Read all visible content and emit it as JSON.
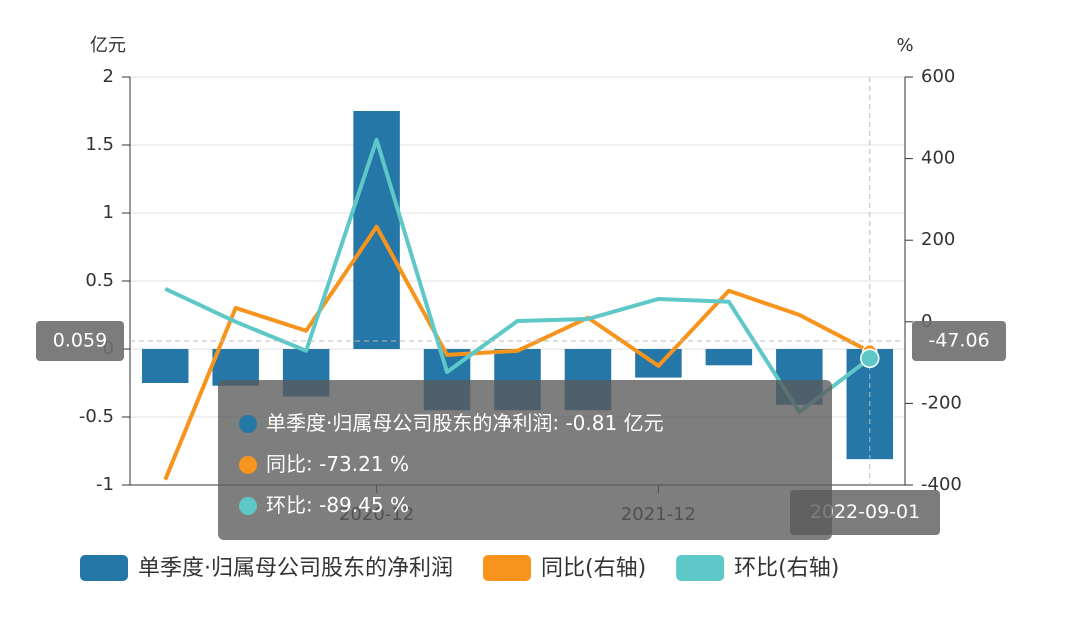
{
  "chart_data": {
    "type": "bar_line",
    "categories": [
      null,
      null,
      null,
      "2020-12",
      null,
      null,
      null,
      "2021-12",
      null,
      null,
      "2022-09-01"
    ],
    "ylabel": "亿元",
    "y2label": "%",
    "ylim": [
      -1,
      2
    ],
    "yticks": [
      -1,
      -0.5,
      0,
      0.5,
      1,
      1.5,
      2
    ],
    "y2lim": [
      -400,
      600
    ],
    "y2ticks": [
      -400,
      -200,
      0,
      200,
      400,
      600
    ],
    "grid": true,
    "legend": "bottom",
    "series": [
      {
        "name": "单季度·归属母公司股东的净利润",
        "type": "bar",
        "color": "#2577a8",
        "values": [
          -0.25,
          -0.27,
          -0.35,
          1.75,
          -0.45,
          -0.45,
          -0.45,
          -0.21,
          -0.12,
          -0.41,
          -0.81
        ]
      },
      {
        "name": "同比(右轴)",
        "type": "line",
        "axis": "y2",
        "color": "#f7941d",
        "values": [
          -387,
          34,
          -22,
          233,
          -81,
          -71,
          10,
          -108,
          76,
          17,
          -73.21
        ]
      },
      {
        "name": "环比(右轴)",
        "type": "line",
        "axis": "y2",
        "color": "#5ec8c8",
        "values": [
          81,
          0,
          -71,
          446,
          -123,
          2,
          7,
          56,
          49,
          -221,
          -89.45
        ]
      }
    ],
    "axis_pointer": {
      "index": 10,
      "y": 0.059,
      "y2": -47.06
    },
    "tooltip": {
      "names": [
        "单季度·归属母公司股东的净利润",
        "同比",
        "环比"
      ]
    }
  }
}
